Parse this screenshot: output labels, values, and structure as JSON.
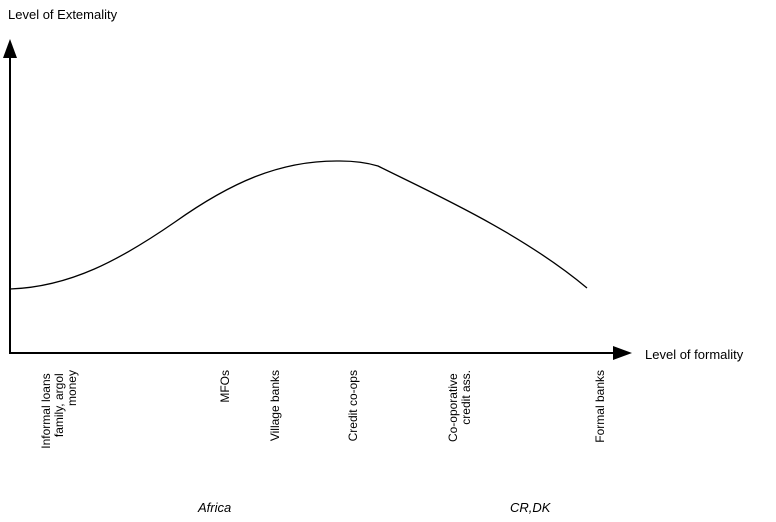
{
  "diagram": {
    "y_axis_label": "Level of Extemality",
    "x_axis_label": "Level of formality",
    "categories": [
      {
        "lines": [
          "Informal loans",
          "family, argol",
          "money"
        ]
      },
      {
        "lines": [
          "MFOs"
        ]
      },
      {
        "lines": [
          "Village banks"
        ]
      },
      {
        "lines": [
          "Credit co-ops"
        ]
      },
      {
        "lines": [
          "Co-oporative",
          "credit ass."
        ]
      },
      {
        "lines": [
          "Formal banks"
        ]
      }
    ],
    "regions": {
      "left": "Africa",
      "right": "CR,DK"
    },
    "colors": {
      "line": "#000000",
      "background": "#ffffff"
    }
  }
}
